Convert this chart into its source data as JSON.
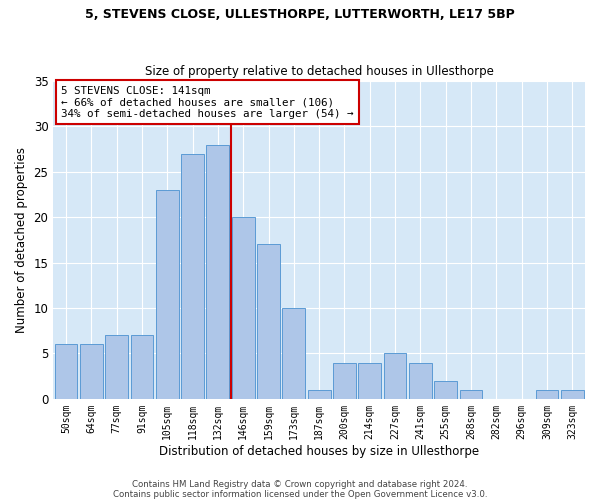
{
  "title1": "5, STEVENS CLOSE, ULLESTHORPE, LUTTERWORTH, LE17 5BP",
  "title2": "Size of property relative to detached houses in Ullesthorpe",
  "xlabel": "Distribution of detached houses by size in Ullesthorpe",
  "ylabel": "Number of detached properties",
  "categories": [
    "50sqm",
    "64sqm",
    "77sqm",
    "91sqm",
    "105sqm",
    "118sqm",
    "132sqm",
    "146sqm",
    "159sqm",
    "173sqm",
    "187sqm",
    "200sqm",
    "214sqm",
    "227sqm",
    "241sqm",
    "255sqm",
    "268sqm",
    "282sqm",
    "296sqm",
    "309sqm",
    "323sqm"
  ],
  "values": [
    6,
    6,
    7,
    7,
    23,
    27,
    28,
    20,
    17,
    10,
    1,
    4,
    4,
    5,
    4,
    2,
    1,
    0,
    0,
    1,
    1
  ],
  "bar_color": "#aec6e8",
  "bar_edge_color": "#5b9bd5",
  "vline_x_idx": 6.5,
  "annotation_box_text": "5 STEVENS CLOSE: 141sqm\n← 66% of detached houses are smaller (106)\n34% of semi-detached houses are larger (54) →",
  "annotation_box_color": "#ffffff",
  "annotation_box_edge_color": "#cc0000",
  "vline_color": "#cc0000",
  "bg_color": "#d6e8f7",
  "footer1": "Contains HM Land Registry data © Crown copyright and database right 2024.",
  "footer2": "Contains public sector information licensed under the Open Government Licence v3.0.",
  "ylim": [
    0,
    35
  ],
  "yticks": [
    0,
    5,
    10,
    15,
    20,
    25,
    30,
    35
  ]
}
